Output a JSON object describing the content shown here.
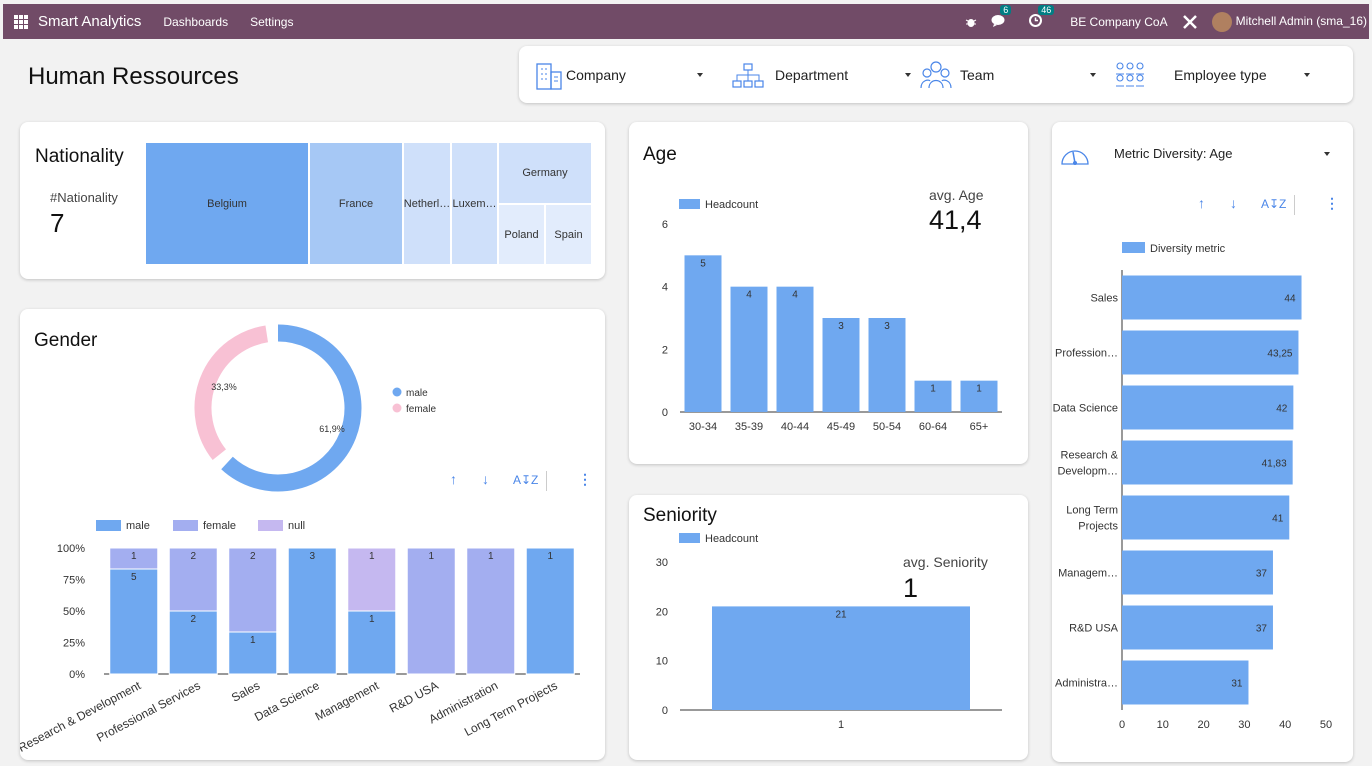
{
  "topbar": {
    "app": "Smart Analytics",
    "nav": [
      "Dashboards",
      "Settings"
    ],
    "messages": "6",
    "activities": "46",
    "company": "BE Company CoA",
    "user": "Mitchell Admin (sma_16)"
  },
  "page_title": "Human Ressources",
  "filters": [
    {
      "label": "Company",
      "icon": "building-icon"
    },
    {
      "label": "Department",
      "icon": "org-chart-icon"
    },
    {
      "label": "Team",
      "icon": "team-icon"
    },
    {
      "label": "Employee type",
      "icon": "people-grid-icon"
    }
  ],
  "nationality": {
    "title": "Nationality",
    "kpi_label": "#Nationality",
    "kpi_value": "7",
    "chart_data": {
      "type": "treemap",
      "items": [
        {
          "label": "Belgium"
        },
        {
          "label": "France"
        },
        {
          "label": "Netherl…"
        },
        {
          "label": "Luxem…"
        },
        {
          "label": "Germany"
        },
        {
          "label": "Poland"
        },
        {
          "label": "Spain"
        }
      ]
    }
  },
  "gender": {
    "title": "Gender",
    "chart_data": {
      "type": "donut",
      "labels": [
        "male",
        "female"
      ],
      "values": [
        61.9,
        33.3
      ],
      "value_labels": [
        "61,9%",
        "33,3%"
      ],
      "colors": [
        "#6fa8f0",
        "#f8c1d4"
      ]
    }
  },
  "gender_stacked": {
    "chart_data": {
      "type": "bar",
      "stacked": true,
      "percent": true,
      "categories": [
        "Research & Development",
        "Professional Services",
        "Sales",
        "Data Science",
        "Management",
        "R&D USA",
        "Administration",
        "Long Term Projects"
      ],
      "series": [
        {
          "name": "male",
          "values": [
            5,
            2,
            1,
            3,
            1,
            0,
            0,
            1
          ],
          "color": "#6fa8f0"
        },
        {
          "name": "female",
          "values": [
            1,
            2,
            2,
            0,
            0,
            1,
            1,
            0
          ],
          "color": "#a3aef0"
        },
        {
          "name": "null",
          "values": [
            0,
            0,
            0,
            0,
            1,
            0,
            0,
            0
          ],
          "color": "#c5b8f0"
        }
      ],
      "yticks": [
        "0%",
        "25%",
        "50%",
        "75%",
        "100%"
      ]
    }
  },
  "age": {
    "title": "Age",
    "kpi_label": "avg. Age",
    "kpi_value": "41,4",
    "chart_data": {
      "type": "bar",
      "categories": [
        "30-34",
        "35-39",
        "40-44",
        "45-49",
        "50-54",
        "60-64",
        "65+"
      ],
      "values": [
        5,
        4,
        4,
        3,
        3,
        1,
        1
      ],
      "series_name": "Headcount",
      "ylim": [
        0,
        6
      ],
      "yticks": [
        "0",
        "2",
        "4",
        "6"
      ],
      "color": "#6fa8f0"
    }
  },
  "seniority": {
    "title": "Seniority",
    "kpi_label": "avg. Seniority",
    "kpi_value": "1",
    "chart_data": {
      "type": "bar",
      "categories": [
        "1"
      ],
      "values": [
        21
      ],
      "series_name": "Headcount",
      "ylim": [
        0,
        30
      ],
      "yticks": [
        "0",
        "10",
        "20",
        "30"
      ],
      "color": "#6fa8f0"
    }
  },
  "diversity": {
    "selector_label": "Metric Diversity:",
    "selector_value": "Age",
    "chart_data": {
      "type": "hbar",
      "series_name": "Diversity metric",
      "categories": [
        "Sales",
        "Profession…",
        "Data Science",
        "Research & Developm…",
        "Long Term Projects",
        "Managem…",
        "R&D USA",
        "Administra…"
      ],
      "values": [
        44,
        43.25,
        42,
        41.83,
        41,
        37,
        37,
        31
      ],
      "value_labels": [
        "44",
        "43,25",
        "42",
        "41,83",
        "41",
        "37",
        "37",
        "31"
      ],
      "xlim": [
        0,
        50
      ],
      "xticks": [
        "0",
        "10",
        "20",
        "30",
        "40",
        "50"
      ],
      "color": "#6fa8f0"
    }
  }
}
